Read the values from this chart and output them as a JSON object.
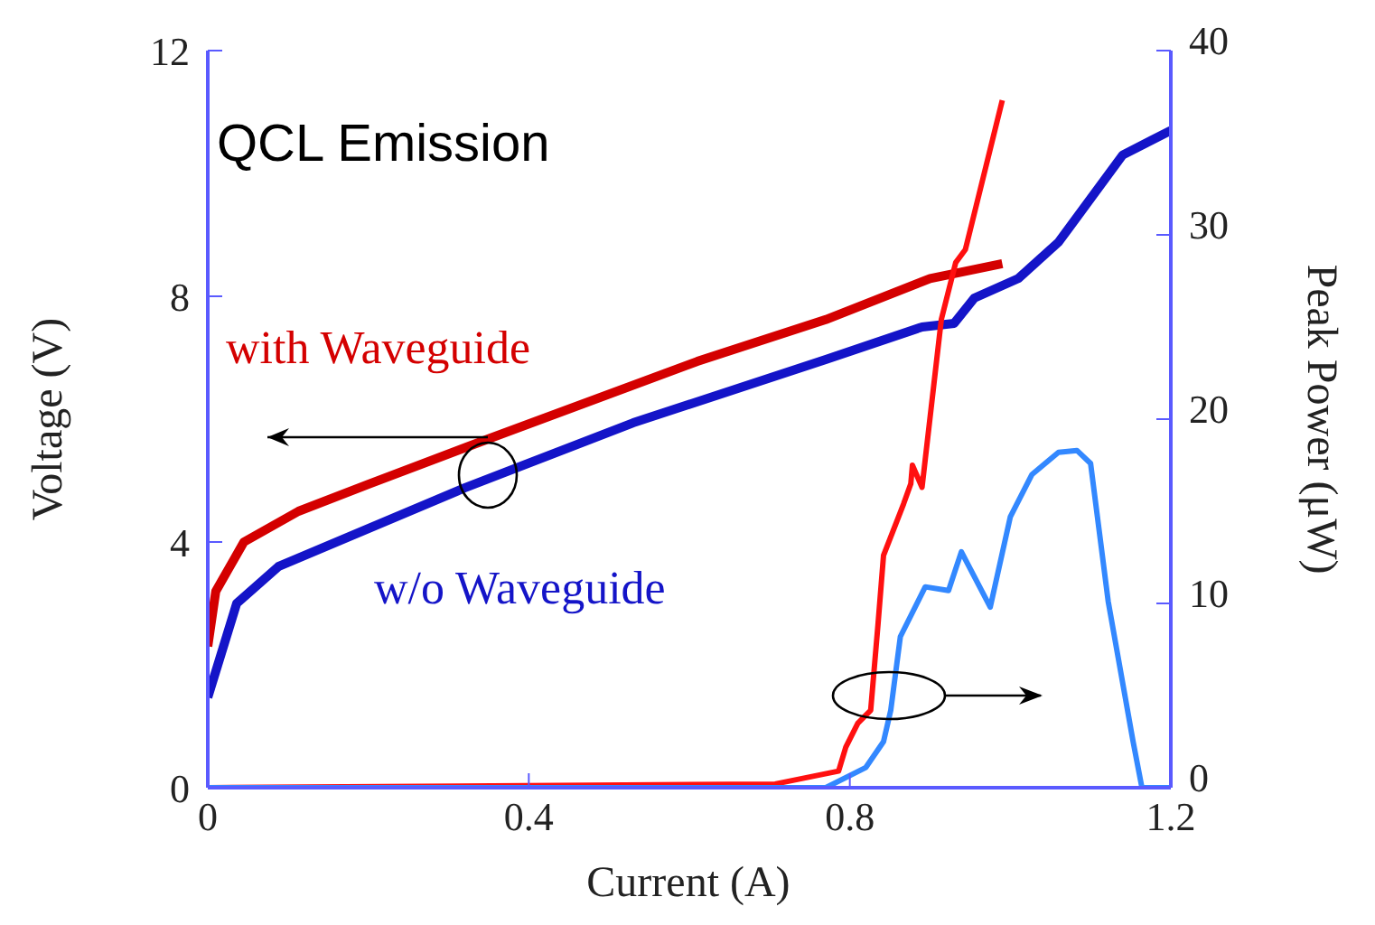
{
  "chart_data": {
    "type": "line",
    "xlabel": "Current (A)",
    "ylabel": "Voltage (V)",
    "y2label": "Peak Power (μW)",
    "xlim": [
      0,
      1.2
    ],
    "xticks": [
      0,
      0.4,
      0.8,
      1.2
    ],
    "ylim": [
      0,
      12
    ],
    "yticks": [
      0,
      4,
      8,
      12
    ],
    "y2lim": [
      0,
      40
    ],
    "y2ticks": [
      0,
      10,
      20,
      30,
      40
    ],
    "grid": false,
    "annotations": [
      "QCL Emission"
    ],
    "series": [
      {
        "name": "with Waveguide",
        "color": "#d40000",
        "x": [
          0,
          0.01,
          0.045,
          0.113,
          0.2,
          0.35,
          0.61,
          0.77,
          0.9,
          0.99
        ],
        "values": [
          2.3,
          3.2,
          4.0,
          4.5,
          4.94,
          5.68,
          6.94,
          7.62,
          8.29,
          8.53
        ]
      },
      {
        "name": "w/o Waveguide",
        "color": "#1414c8",
        "x": [
          0,
          0.036,
          0.088,
          0.32,
          0.53,
          0.77,
          0.89,
          0.93,
          0.955,
          1.01,
          1.06,
          1.14,
          1.2
        ],
        "values": [
          1.47,
          3.0,
          3.6,
          4.88,
          5.94,
          6.97,
          7.5,
          7.56,
          7.97,
          8.29,
          8.88,
          10.3,
          10.7
        ]
      },
      {
        "color": "#ff1010",
        "axis": "y2",
        "x": [
          0,
          0.707,
          0.786,
          0.795,
          0.81,
          0.826,
          0.835,
          0.842,
          0.867,
          0.876,
          0.878,
          0.89,
          0.914,
          0.932,
          0.944,
          0.99
        ],
        "values": [
          0,
          0.2,
          0.9,
          2.2,
          3.5,
          4.2,
          8.8,
          12.6,
          15.4,
          16.5,
          17.5,
          16.3,
          25.4,
          28.5,
          29.2,
          37.3
        ]
      },
      {
        "color": "#3388ff",
        "axis": "y2",
        "x": [
          0,
          0.77,
          0.82,
          0.842,
          0.851,
          0.863,
          0.894,
          0.923,
          0.939,
          0.975,
          1.0,
          1.027,
          1.06,
          1.083,
          1.1,
          1.122,
          1.153,
          1.164,
          1.2
        ],
        "values": [
          0,
          0,
          1.1,
          2.5,
          4.2,
          8.2,
          10.9,
          10.7,
          12.8,
          9.8,
          14.7,
          17.0,
          18.2,
          18.3,
          17.6,
          10.1,
          2.5,
          0,
          0
        ]
      }
    ]
  }
}
